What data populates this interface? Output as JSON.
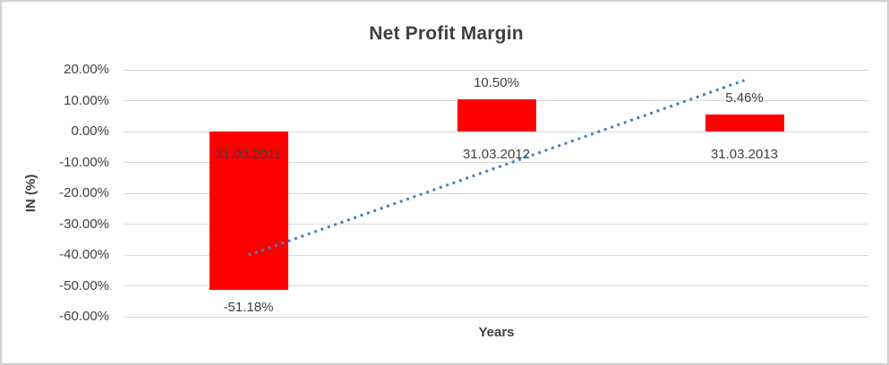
{
  "chart_data": {
    "type": "bar",
    "title": "Net Profit Margin",
    "xlabel": "Years",
    "ylabel": "IN (%)",
    "categories": [
      "31.03.2011",
      "31.03.2012",
      "31.03.2013"
    ],
    "values": [
      -51.18,
      10.5,
      5.46
    ],
    "data_labels": [
      "-51.18%",
      "10.50%",
      "5.46%"
    ],
    "y_ticks": [
      20,
      10,
      0,
      -10,
      -20,
      -30,
      -40,
      -50,
      -60
    ],
    "y_tick_labels": [
      "20.00%",
      "10.00%",
      "0.00%",
      "-10.00%",
      "-20.00%",
      "-30.00%",
      "-40.00%",
      "-50.00%",
      "-60.00%"
    ],
    "ylim": [
      -60,
      20
    ],
    "grid": true,
    "legend": "none",
    "bar_color": "#ff0000",
    "gridline_color": "#d9d9d9",
    "text_color": "#404040",
    "trendline": {
      "type": "linear",
      "style": "dotted",
      "color": "#4a7ebb",
      "start_value": -40.06,
      "end_value": 16.58
    }
  }
}
